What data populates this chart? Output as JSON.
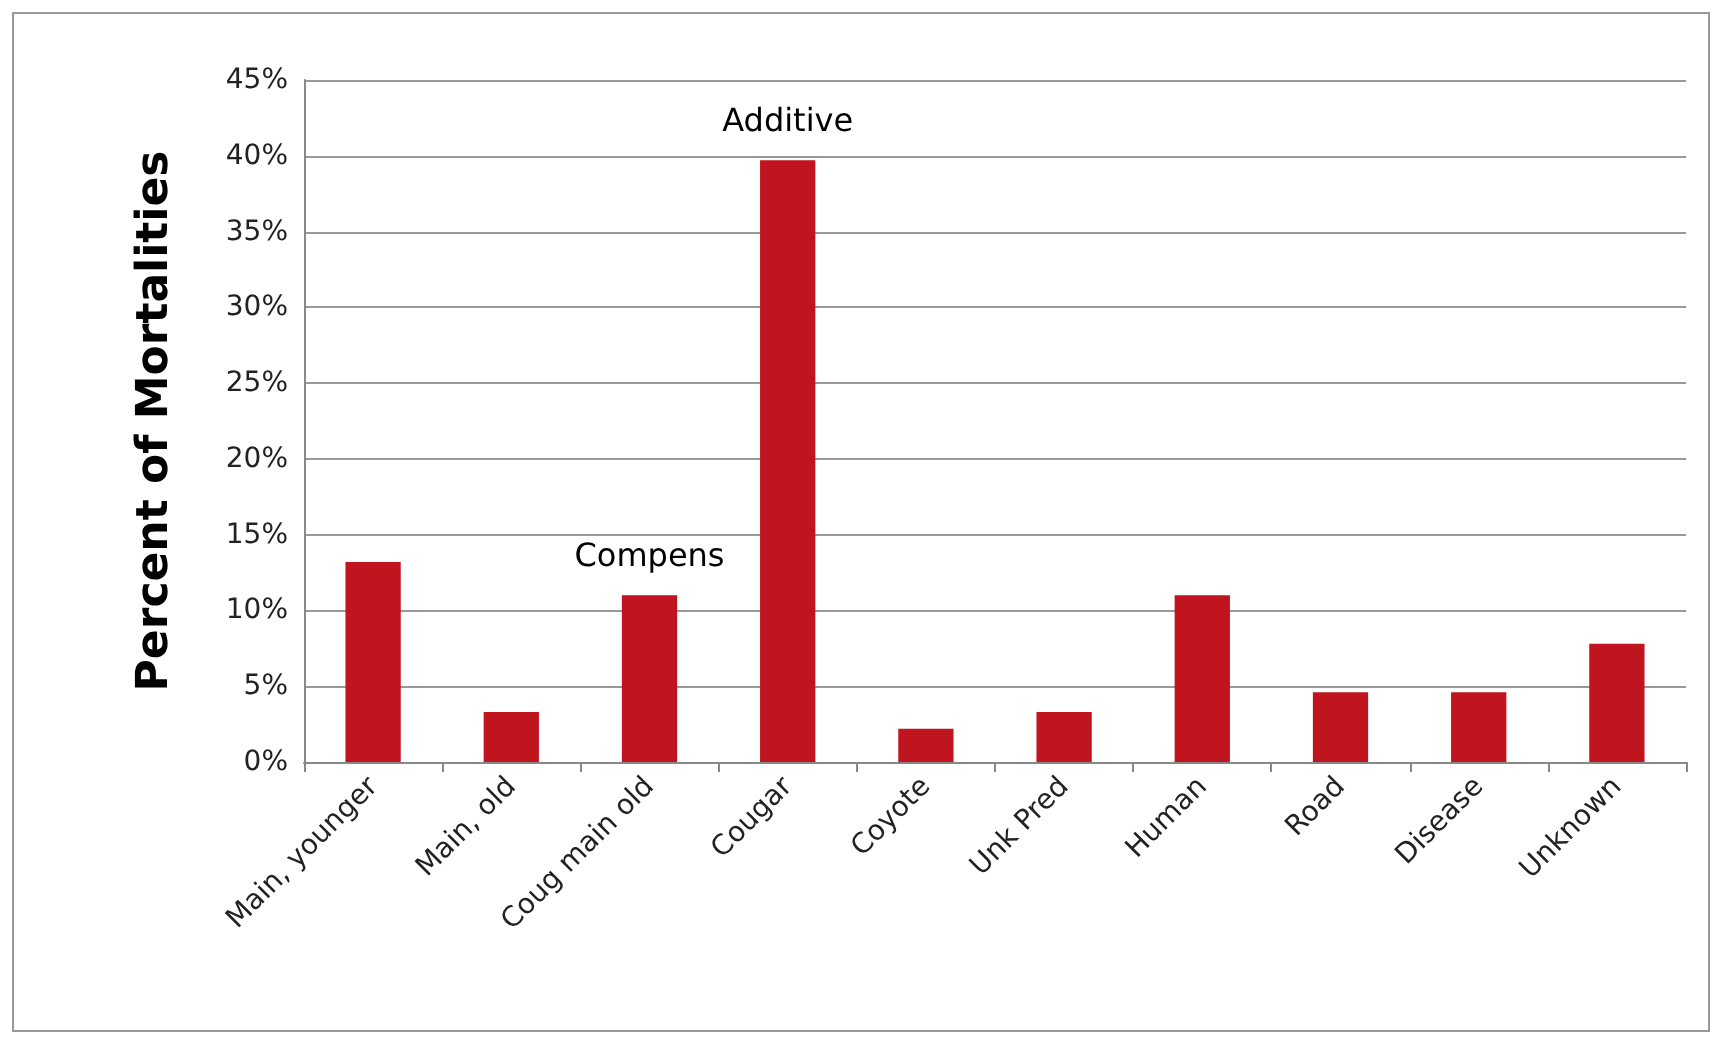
{
  "chart_data": {
    "type": "bar",
    "ylabel": "Percent of Mortalities",
    "categories": [
      "Main, younger",
      "Main, old",
      "Coug main old",
      "Cougar",
      "Coyote",
      "Unk Pred",
      "Human",
      "Road",
      "Disease",
      "Unknown"
    ],
    "values": [
      13.2,
      3.3,
      11,
      39.7,
      2.2,
      3.3,
      11,
      4.6,
      4.6,
      7.8
    ],
    "color": "#c0141e",
    "ylim": [
      0,
      45
    ],
    "yticks": [
      {
        "value": 0,
        "label": "0%"
      },
      {
        "value": 5,
        "label": "5%"
      },
      {
        "value": 10,
        "label": "10%"
      },
      {
        "value": 15,
        "label": "15%"
      },
      {
        "value": 20,
        "label": "20%"
      },
      {
        "value": 25,
        "label": "25%"
      },
      {
        "value": 30,
        "label": "30%"
      },
      {
        "value": 35,
        "label": "35%"
      },
      {
        "value": 40,
        "label": "40%"
      },
      {
        "value": 45,
        "label": "45%"
      }
    ],
    "grid": "y",
    "annotations": [
      {
        "text": "Compens",
        "x": "Coug main old",
        "y": 11
      },
      {
        "text": "Additive",
        "x": "Cougar",
        "y": 39.7
      }
    ]
  }
}
